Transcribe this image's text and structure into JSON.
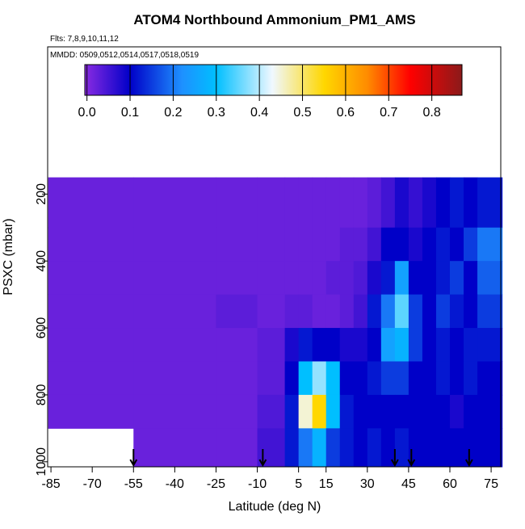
{
  "chart_data": {
    "type": "heatmap",
    "title": "ATOM4 Northbound Ammonium_PM1_AMS",
    "subtitle": "Flts: 7,8,9,10,11,12",
    "annotation": "MMDD: 0509,0512,0514,0517,0518,0519",
    "x_label": "Latitude (deg N)",
    "y_label": "PSXC (mbar)",
    "xlim": [
      -86.2,
      78.5
    ],
    "xticks": [
      -85,
      -70,
      -55,
      -40,
      -25,
      -10,
      5,
      15,
      30,
      45,
      60,
      75
    ],
    "ylim": [
      1015,
      -240
    ],
    "yticks": [
      200,
      400,
      600,
      800,
      1000
    ],
    "x_edges": [
      -86,
      -55,
      -25,
      -10,
      0,
      5,
      10,
      15,
      20,
      25,
      30,
      35,
      40,
      45,
      50,
      55,
      60,
      65,
      70,
      79
    ],
    "y_edges": [
      150,
      300,
      400,
      500,
      600,
      700,
      800,
      900,
      1015
    ],
    "z": [
      [
        0.02,
        0.02,
        0.02,
        0.02,
        0.02,
        0.02,
        0.02,
        0.02,
        0.02,
        0.02,
        0.03,
        0.05,
        0.08,
        0.06,
        0.08,
        0.1,
        0.12,
        0.1,
        0.12
      ],
      [
        0.02,
        0.02,
        0.02,
        0.02,
        0.02,
        0.02,
        0.02,
        0.02,
        0.03,
        0.03,
        0.05,
        0.1,
        0.1,
        0.08,
        0.1,
        0.12,
        0.1,
        0.15,
        0.2
      ],
      [
        0.02,
        0.02,
        0.02,
        0.02,
        0.02,
        0.02,
        0.02,
        0.03,
        0.03,
        0.04,
        0.08,
        0.12,
        0.25,
        0.1,
        0.1,
        0.12,
        0.15,
        0.1,
        0.18
      ],
      [
        0.02,
        0.02,
        0.03,
        0.02,
        0.03,
        0.03,
        0.02,
        0.02,
        0.03,
        0.05,
        0.12,
        0.2,
        0.35,
        0.15,
        0.1,
        0.15,
        0.12,
        0.1,
        0.15
      ],
      [
        0.02,
        0.02,
        0.02,
        0.03,
        0.08,
        0.12,
        0.1,
        0.1,
        0.08,
        0.08,
        0.1,
        0.25,
        0.28,
        0.15,
        0.1,
        0.12,
        0.1,
        0.12,
        0.12
      ],
      [
        0.02,
        0.02,
        0.02,
        0.03,
        0.1,
        0.3,
        0.38,
        0.3,
        0.1,
        0.1,
        0.12,
        0.15,
        0.15,
        0.1,
        0.1,
        0.12,
        0.1,
        0.12,
        0.1
      ],
      [
        0.02,
        0.02,
        0.02,
        0.04,
        0.12,
        0.45,
        0.55,
        0.3,
        0.12,
        0.1,
        0.1,
        0.1,
        0.1,
        0.1,
        0.1,
        0.1,
        0.08,
        0.1,
        0.1
      ],
      [
        null,
        0.02,
        0.02,
        0.05,
        0.12,
        0.2,
        0.28,
        0.15,
        0.12,
        0.1,
        0.12,
        0.1,
        0.12,
        0.1,
        0.1,
        0.1,
        0.1,
        0.1,
        0.1
      ]
    ],
    "clim": [
      -0.005,
      0.87
    ],
    "cticks": [
      {
        "value": 0,
        "label": "0.0"
      },
      0.1,
      0.2,
      0.3,
      0.4,
      0.5,
      0.6,
      0.7,
      0.8
    ],
    "colorscale": [
      [
        -0.005,
        "#8a2be2"
      ],
      [
        0.1,
        "#0000c8"
      ],
      [
        0.22,
        "#1e90ff"
      ],
      [
        0.3,
        "#00bfff"
      ],
      [
        0.43,
        "#f0f8ff"
      ],
      [
        0.55,
        "#ffd700"
      ],
      [
        0.65,
        "#ff8c00"
      ],
      [
        0.75,
        "#ff0000"
      ],
      [
        0.87,
        "#8b1a1a"
      ]
    ],
    "flight_markers": [
      -55,
      -8,
      40,
      46,
      67
    ]
  }
}
